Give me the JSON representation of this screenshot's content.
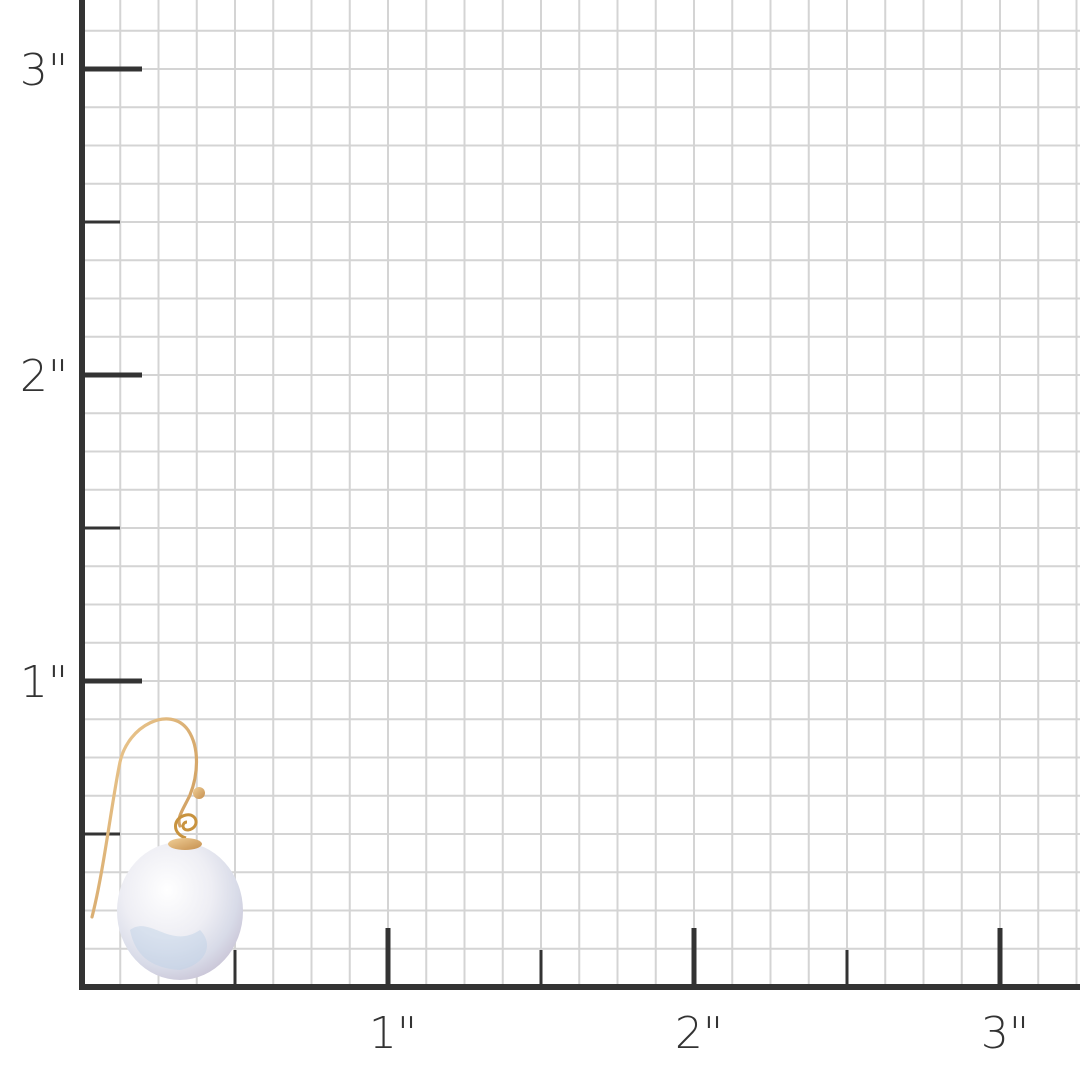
{
  "ruler": {
    "unit": "inch",
    "x_labels": [
      "1\"",
      "2\"",
      "3\""
    ],
    "y_labels": [
      "1\"",
      "2\"",
      "3\""
    ],
    "grid_subdivisions_per_inch": 8,
    "axis_color": "#333333",
    "grid_color": "#d4d4d4"
  },
  "product": {
    "type": "coin pearl drop earring on gold ear wire",
    "pearl_color": "#f2f2f6",
    "wire_color": "#d9a86a"
  }
}
